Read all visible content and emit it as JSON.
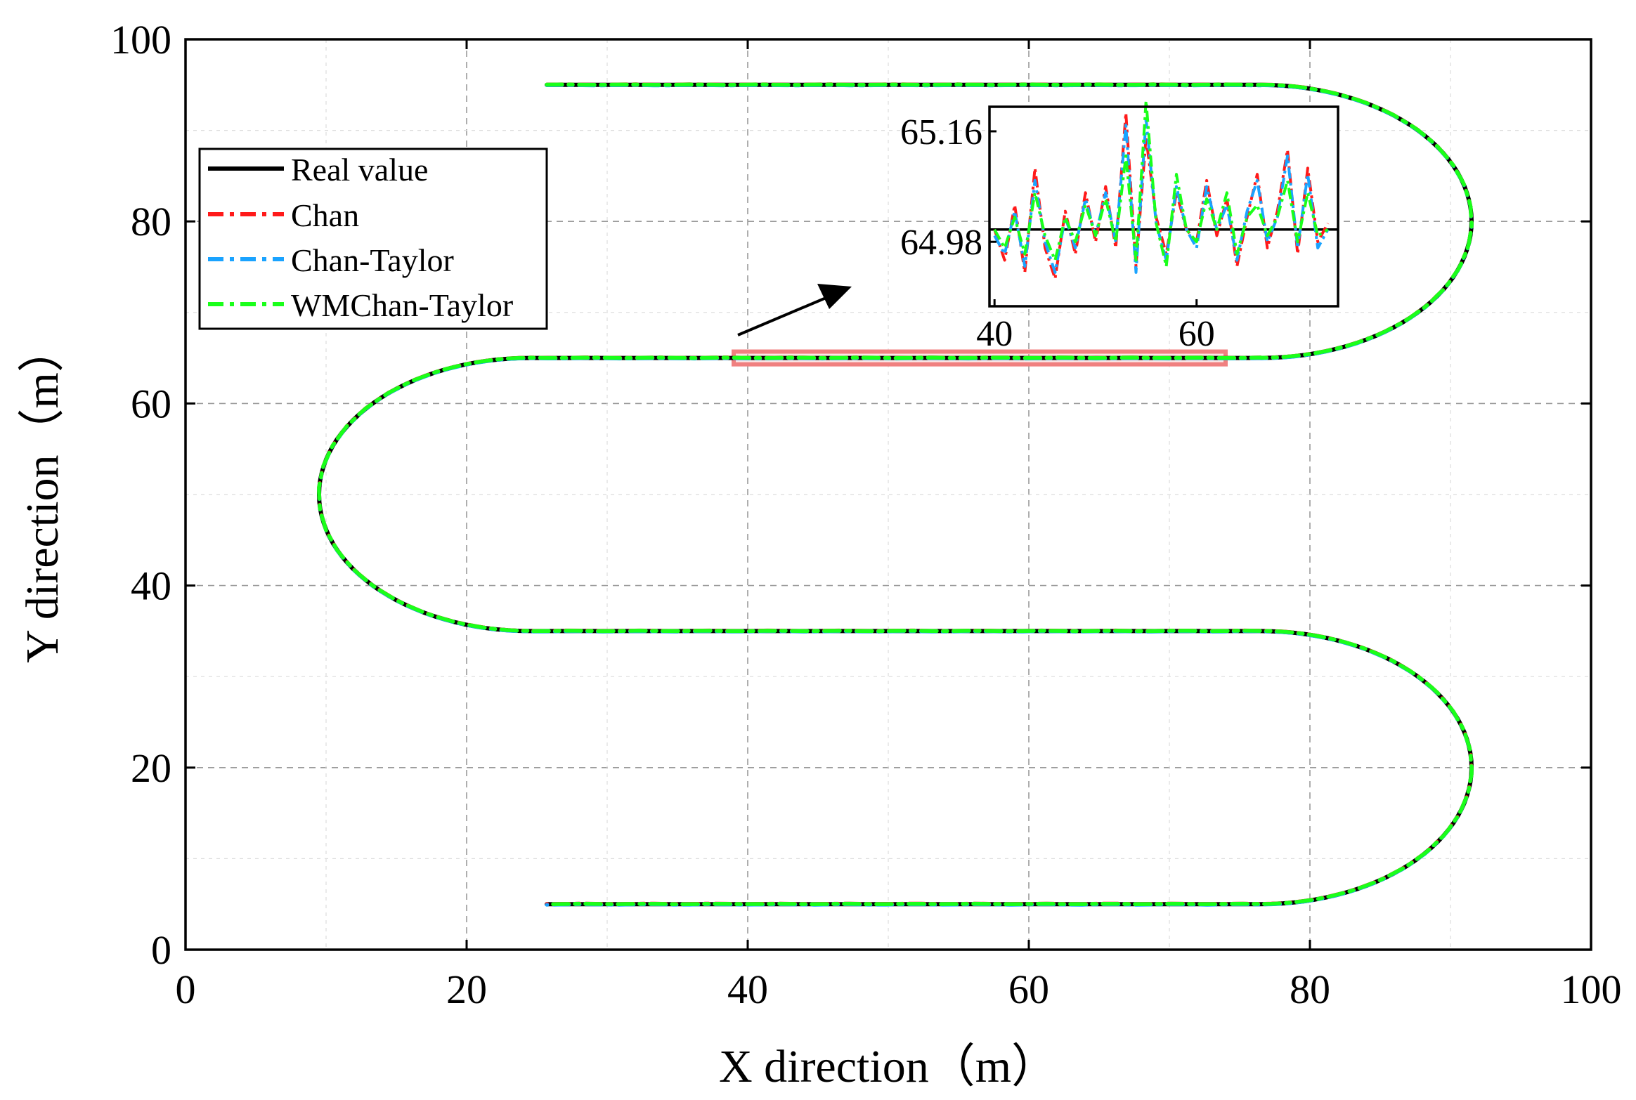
{
  "chart_data": {
    "type": "line",
    "title": "",
    "xlabel": "X direction（m）",
    "ylabel": "Y direction（m）",
    "xlim": [
      0,
      100
    ],
    "ylim": [
      0,
      100
    ],
    "xticks": [
      0,
      20,
      40,
      60,
      80,
      100
    ],
    "yticks": [
      0,
      20,
      40,
      60,
      80,
      100
    ],
    "minor_grid_x": [
      10,
      30,
      50,
      70,
      90
    ],
    "minor_grid_y": [
      10,
      30,
      50,
      70,
      90
    ],
    "grid": true,
    "legend": {
      "placement": "upper-left",
      "entries": [
        "Real value",
        "Chan",
        "Chan-Taylor",
        "WMChan-Taylor"
      ]
    },
    "trajectory_description": "serpentine path",
    "series": [
      {
        "name": "Real value",
        "color": "#000000",
        "style": "solid"
      },
      {
        "name": "Chan",
        "color": "#ff1a1a",
        "style": "dash-dot"
      },
      {
        "name": "Chan-Taylor",
        "color": "#1aa3ff",
        "style": "dash-dot"
      },
      {
        "name": "WMChan-Taylor",
        "color": "#1aff1a",
        "style": "dash-dot"
      }
    ],
    "path_segments": [
      {
        "type": "line",
        "from": [
          25.7,
          95
        ],
        "to": [
          76.5,
          95
        ]
      },
      {
        "type": "arc",
        "center": [
          76.5,
          80
        ],
        "radius": 15,
        "from_deg": 90,
        "to_deg": -90,
        "direction": "clockwise"
      },
      {
        "type": "line",
        "from": [
          76.5,
          65
        ],
        "to": [
          24.5,
          65
        ]
      },
      {
        "type": "arc",
        "center": [
          24.5,
          50
        ],
        "radius": 15,
        "from_deg": 90,
        "to_deg": 270,
        "direction": "counterclockwise"
      },
      {
        "type": "line",
        "from": [
          24.5,
          35
        ],
        "to": [
          76.5,
          35
        ]
      },
      {
        "type": "arc",
        "center": [
          76.5,
          20
        ],
        "radius": 15,
        "from_deg": 90,
        "to_deg": -90,
        "direction": "clockwise"
      },
      {
        "type": "line",
        "from": [
          76.5,
          5
        ],
        "to": [
          25.7,
          5
        ]
      }
    ],
    "highlight_box": {
      "x_range": [
        39,
        74
      ],
      "y_range": [
        64.3,
        65.7
      ],
      "color": "#f08080"
    },
    "inset": {
      "xlim": [
        39.5,
        74
      ],
      "ylim": [
        64.875,
        65.2
      ],
      "xticks": [
        40,
        60
      ],
      "yticks": [
        64.98,
        65.16
      ],
      "ytick_labels": [
        "64.98",
        "65.16"
      ],
      "real_value": 65.0,
      "x": [
        40,
        41,
        42,
        43,
        44,
        45,
        46,
        47,
        48,
        49,
        50,
        51,
        52,
        53,
        54,
        55,
        56,
        57,
        58,
        59,
        60,
        61,
        62,
        63,
        64,
        65,
        66,
        67,
        68,
        69,
        70,
        71,
        72,
        73
      ],
      "Chan": [
        65.0,
        64.95,
        65.04,
        64.93,
        65.1,
        64.97,
        64.92,
        65.03,
        64.96,
        65.06,
        64.98,
        65.07,
        64.97,
        65.19,
        64.94,
        65.15,
        65.02,
        64.96,
        65.06,
        65.0,
        64.98,
        65.08,
        64.99,
        65.05,
        64.94,
        65.02,
        65.09,
        64.97,
        65.03,
        65.13,
        64.96,
        65.1,
        64.98,
        65.01
      ],
      "Chan-Taylor": [
        64.99,
        64.96,
        65.03,
        64.94,
        65.08,
        64.98,
        64.93,
        65.02,
        64.97,
        65.05,
        64.99,
        65.06,
        64.98,
        65.17,
        64.93,
        65.18,
        65.01,
        64.95,
        65.07,
        65.0,
        64.97,
        65.07,
        65.0,
        65.04,
        64.95,
        65.03,
        65.08,
        64.98,
        65.02,
        65.12,
        64.97,
        65.09,
        64.97,
        65.0
      ],
      "WMChan-Taylor": [
        65.0,
        64.97,
        65.02,
        64.96,
        65.06,
        64.99,
        64.95,
        65.02,
        64.98,
        65.04,
        64.99,
        65.05,
        64.98,
        65.12,
        64.95,
        65.21,
        65.01,
        64.94,
        65.09,
        65.0,
        64.98,
        65.05,
        65.0,
        65.06,
        64.96,
        65.02,
        65.04,
        64.99,
        65.02,
        65.08,
        64.98,
        65.06,
        64.99,
        65.0
      ]
    }
  }
}
